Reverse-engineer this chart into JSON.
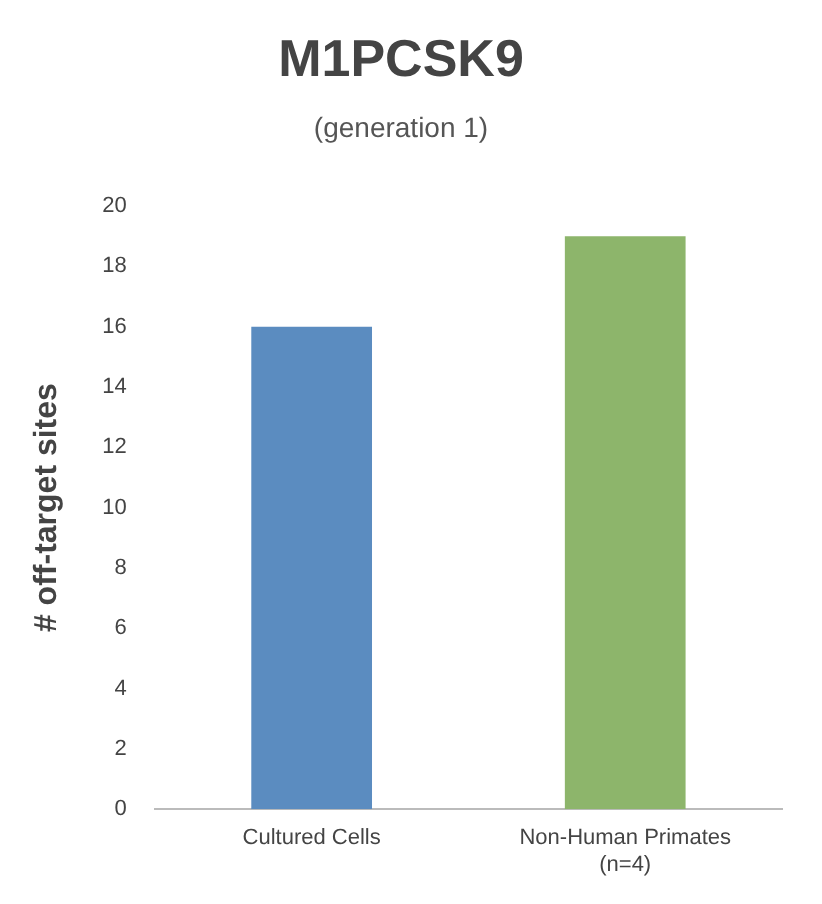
{
  "chart_data": {
    "type": "bar",
    "title": "M1PCSK9",
    "subtitle": "(generation 1)",
    "ylabel": "# off-target sites",
    "categories": [
      "Cultured Cells",
      "Non-Human Primates\n(n=4)"
    ],
    "values": [
      16,
      19
    ],
    "colors": [
      "#5b8cc0",
      "#8db56b"
    ],
    "ylim": [
      0,
      20
    ],
    "yticks": [
      0,
      2,
      4,
      6,
      8,
      10,
      12,
      14,
      16,
      18,
      20
    ],
    "grid": false,
    "legend": false
  }
}
